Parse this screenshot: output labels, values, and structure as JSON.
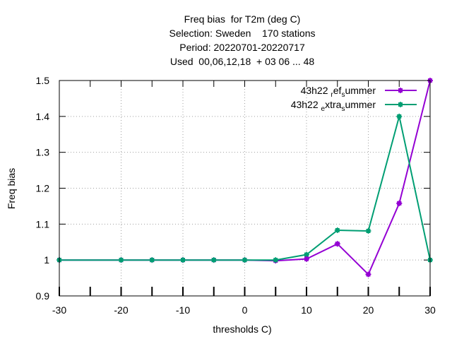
{
  "chart_data": {
    "type": "line",
    "title_lines": [
      "Freq bias  for T2m (deg C)",
      "Selection: Sweden    170 stations",
      "Period: 20220701-20220717",
      "Used  00,06,12,18  + 03 06 ... 48"
    ],
    "xlabel": "thresholds C)",
    "ylabel": "Freq bias",
    "xlim": [
      -30,
      30
    ],
    "ylim": [
      0.9,
      1.5
    ],
    "xticks": [
      -30,
      -20,
      -10,
      0,
      10,
      20,
      30
    ],
    "xtick_labels": [
      "-30",
      "-20",
      "-10",
      "0",
      "10",
      "20",
      "30"
    ],
    "xminor_ticks": [
      -25,
      -15,
      -5,
      5,
      15,
      25
    ],
    "yticks": [
      0.9,
      1.0,
      1.1,
      1.2,
      1.3,
      1.4,
      1.5
    ],
    "ytick_labels": [
      "0.9",
      "1",
      "1.1",
      "1.2",
      "1.3",
      "1.4",
      "1.5"
    ],
    "grid": true,
    "legend_position": "top-right",
    "x": [
      -30,
      -20,
      -15,
      -10,
      -5,
      0,
      5,
      10,
      15,
      20,
      25,
      30
    ],
    "series": [
      {
        "name_parts": [
          "43h22 ",
          "r",
          "ef",
          "s",
          "ummer"
        ],
        "color": "#9400d3",
        "values": [
          1.0,
          1.0,
          1.0,
          1.0,
          1.0,
          1.0,
          0.998,
          1.003,
          1.045,
          0.96,
          1.158,
          1.5
        ]
      },
      {
        "name_parts": [
          "43h22 ",
          "e",
          "xtra",
          "s",
          "ummer"
        ],
        "color": "#009e73",
        "values": [
          1.0,
          1.0,
          1.0,
          1.0,
          1.0,
          1.0,
          1.0,
          1.015,
          1.083,
          1.081,
          1.4,
          1.0
        ]
      }
    ]
  }
}
